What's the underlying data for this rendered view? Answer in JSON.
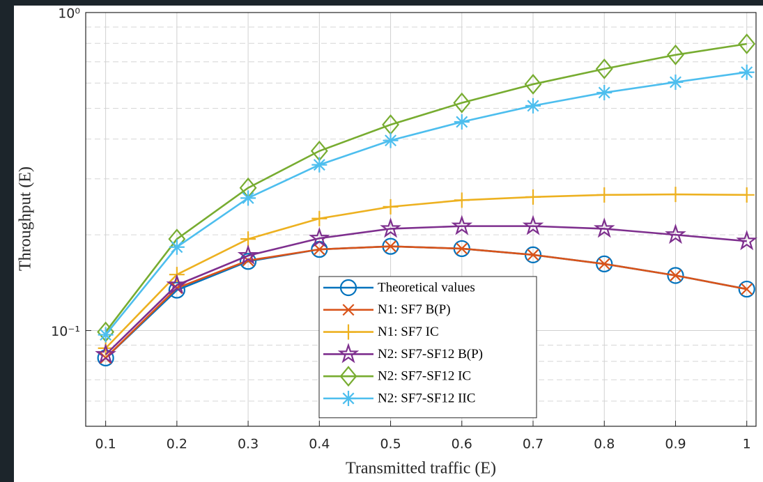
{
  "chart_data": {
    "type": "line",
    "xlabel": "Transmitted traffic (E)",
    "ylabel": "Throughput (E)",
    "x": [
      0.1,
      0.2,
      0.3,
      0.4,
      0.5,
      0.6,
      0.7,
      0.8,
      0.9,
      1
    ],
    "xlim": [
      0.072,
      1.013
    ],
    "xticks": [
      0.1,
      0.2,
      0.3,
      0.4,
      0.5,
      0.6,
      0.7,
      0.8,
      0.9,
      1
    ],
    "ylim": [
      0.05,
      1
    ],
    "ylog": true,
    "yticks": [
      {
        "value": 0.1,
        "label": "10⁻¹"
      },
      {
        "value": 1,
        "label": "10⁰"
      }
    ],
    "yminorticks": [
      0.06,
      0.07,
      0.08,
      0.09,
      0.2,
      0.3,
      0.4,
      0.5,
      0.6,
      0.7,
      0.8,
      0.9
    ],
    "grid": true,
    "legend": "bottom-center",
    "series": [
      {
        "name": "Theoretical values",
        "color": "#0072BD",
        "marker": "circle",
        "values": [
          0.082,
          0.134,
          0.165,
          0.18,
          0.184,
          0.181,
          0.173,
          0.162,
          0.149,
          0.135
        ]
      },
      {
        "name": "N1:  SF7 B(P)",
        "color": "#D95319",
        "marker": "x",
        "values": [
          0.082,
          0.136,
          0.166,
          0.18,
          0.184,
          0.181,
          0.173,
          0.162,
          0.149,
          0.135
        ]
      },
      {
        "name": "N1:  SF7 IC",
        "color": "#EDB120",
        "marker": "plus",
        "values": [
          0.088,
          0.15,
          0.194,
          0.225,
          0.245,
          0.257,
          0.263,
          0.267,
          0.268,
          0.267
        ]
      },
      {
        "name": "N2:  SF7-SF12 B(P)",
        "color": "#7E2F8E",
        "marker": "star",
        "values": [
          0.084,
          0.139,
          0.172,
          0.195,
          0.209,
          0.213,
          0.213,
          0.209,
          0.2,
          0.191
        ]
      },
      {
        "name": "N2:  SF7-SF12 IC",
        "color": "#77AC30",
        "marker": "diamond",
        "values": [
          0.099,
          0.194,
          0.281,
          0.367,
          0.444,
          0.52,
          0.595,
          0.665,
          0.736,
          0.797
        ]
      },
      {
        "name": "N2:  SF7-SF12 IIC",
        "color": "#4DBEEE",
        "marker": "asterisk",
        "values": [
          0.097,
          0.183,
          0.261,
          0.332,
          0.396,
          0.453,
          0.509,
          0.56,
          0.604,
          0.649
        ]
      }
    ]
  }
}
